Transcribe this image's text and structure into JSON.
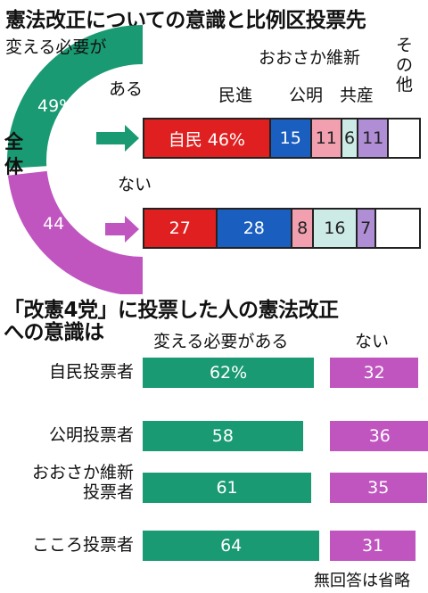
{
  "title_top": "憲法改正についての意識と比例区投票先",
  "title_bottom_1": "「改憲4党」に投票した人の憲法改正",
  "title_bottom_2": "への意識は",
  "footnote": "無回答は省略",
  "colors": {
    "change": "#1a9a72",
    "no": "#c055c0",
    "ldp": "#e02020",
    "cdp": "#1a5fbf",
    "komeito": "#f2a0b0",
    "jcp": "#cdebe6",
    "ishin": "#b08ed6",
    "other": "#ffffff"
  },
  "chart_data": [
    {
      "type": "pie",
      "title": "全体",
      "title_sub": "変える必要が",
      "slices": [
        {
          "name": "ある",
          "value": 49,
          "label": "49%"
        },
        {
          "name": "ない",
          "value": 44,
          "label": "44"
        }
      ]
    },
    {
      "type": "bar",
      "stacked": true,
      "categories": [
        "ある",
        "ない"
      ],
      "series": [
        {
          "name": "自民",
          "values": [
            46,
            27
          ],
          "labels": [
            "自民 46%",
            "27"
          ]
        },
        {
          "name": "民進",
          "values": [
            15,
            28
          ],
          "labels": [
            "15",
            "28"
          ]
        },
        {
          "name": "公明",
          "values": [
            11,
            8
          ],
          "labels": [
            "11",
            "8"
          ]
        },
        {
          "name": "共産",
          "values": [
            6,
            16
          ],
          "labels": [
            "6",
            "16"
          ]
        },
        {
          "name": "おおさか維新",
          "values": [
            11,
            7
          ],
          "labels": [
            "11",
            "7"
          ]
        },
        {
          "name": "その他",
          "values": [
            11,
            16
          ],
          "labels": [
            "",
            ""
          ]
        }
      ]
    },
    {
      "type": "bar",
      "orientation": "horizontal",
      "categories": [
        "自民投票者",
        "公明投票者",
        "おおさか維新\n投票者",
        "こころ投票者"
      ],
      "series": [
        {
          "name": "変える必要がある",
          "values": [
            62,
            58,
            61,
            64
          ],
          "labels": [
            "62%",
            "58",
            "61",
            "64"
          ]
        },
        {
          "name": "ない",
          "values": [
            32,
            36,
            35,
            31
          ],
          "labels": [
            "32",
            "36",
            "35",
            "31"
          ]
        }
      ]
    }
  ]
}
